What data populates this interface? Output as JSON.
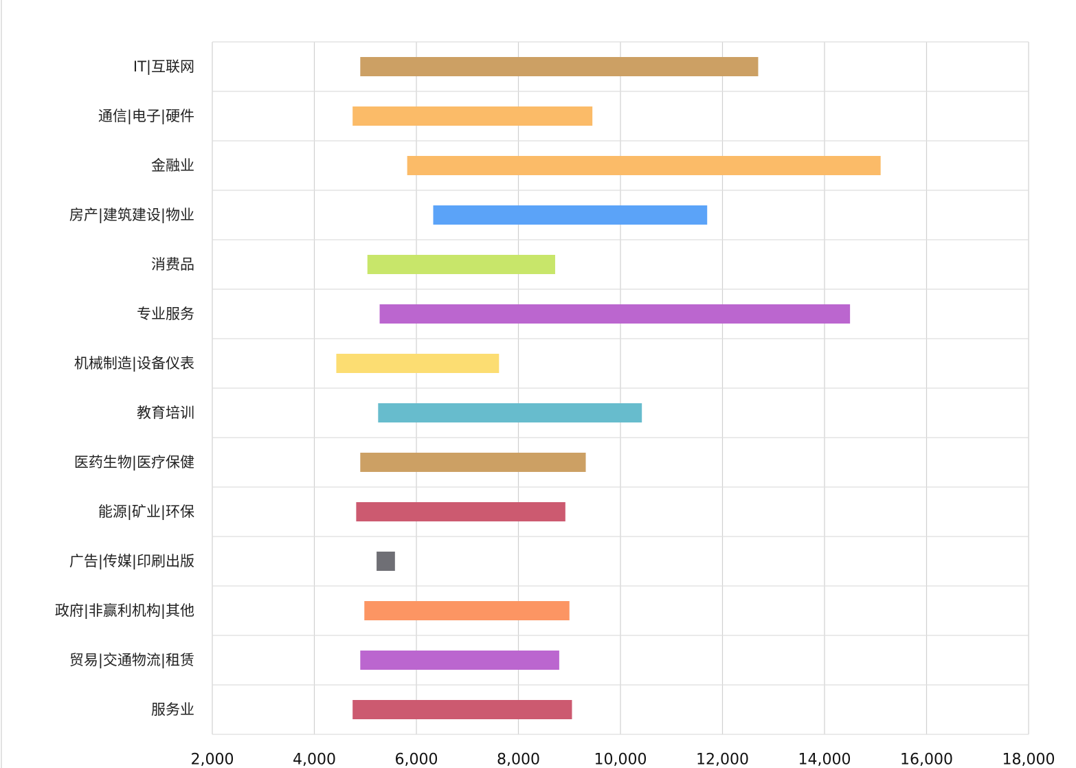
{
  "chart_data": {
    "type": "bar",
    "orientation": "horizontal",
    "bar_style": "floating-range",
    "categories": [
      "IT|互联网",
      "通信|电子|硬件",
      "金融业",
      "房产|建筑建设|物业",
      "消费品",
      "专业服务",
      "机械制造|设备仪表",
      "教育培训",
      "医药生物|医疗保健",
      "能源|矿业|环保",
      "广告|传媒|印刷出版",
      "政府|非赢利机构|其他",
      "贸易|交通物流|租赁",
      "服务业"
    ],
    "ranges": [
      [
        4900,
        12700
      ],
      [
        4750,
        9450
      ],
      [
        5820,
        15100
      ],
      [
        6330,
        11700
      ],
      [
        5040,
        8720
      ],
      [
        5280,
        14500
      ],
      [
        4430,
        7620
      ],
      [
        5250,
        10420
      ],
      [
        4900,
        9320
      ],
      [
        4820,
        8920
      ],
      [
        5220,
        5580
      ],
      [
        4980,
        9000
      ],
      [
        4900,
        8800
      ],
      [
        4750,
        9050
      ]
    ],
    "colors": [
      "#cca064",
      "#fbbb68",
      "#fbbb68",
      "#5ba3f8",
      "#c8e66a",
      "#bb66cf",
      "#fcdd72",
      "#67bccd",
      "#cca064",
      "#cc5a70",
      "#6f6f75",
      "#fc9563",
      "#bb66cf",
      "#cc5a70"
    ],
    "xlim": [
      2000,
      18000
    ],
    "xticks": [
      "2,000",
      "4,000",
      "6,000",
      "8,000",
      "10,000",
      "12,000",
      "14,000",
      "16,000",
      "18,000"
    ],
    "xtick_values": [
      2000,
      4000,
      6000,
      8000,
      10000,
      12000,
      14000,
      16000,
      18000
    ],
    "grid": true,
    "legend": "none",
    "title": "",
    "xlabel": "",
    "ylabel": ""
  }
}
